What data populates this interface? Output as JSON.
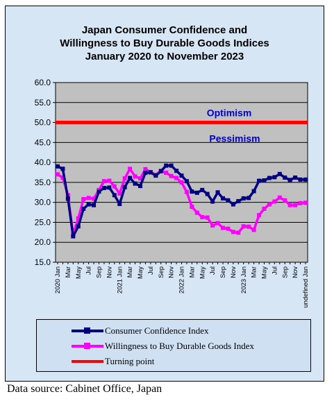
{
  "chart_data": {
    "type": "line",
    "title_lines": [
      "Japan Consumer Confidence and",
      "Willingness to Buy Durable Goods Indices",
      "January 2020 to November 2023"
    ],
    "ylim": [
      15,
      60
    ],
    "yticks": [
      "15.0",
      "20.0",
      "25.0",
      "30.0",
      "35.0",
      "40.0",
      "45.0",
      "50.0",
      "55.0",
      "60.0"
    ],
    "x_year_labels": [
      "2020",
      "2021",
      "2022",
      "2023"
    ],
    "x_month_labels": [
      "Jan",
      "Mar",
      "May",
      "Jul",
      "Sep",
      "Nov"
    ],
    "grid": true,
    "legend_position": "bottom",
    "annotations": [
      {
        "text": "Optimism",
        "y": 52.4
      },
      {
        "text": "Pessimism",
        "y": 46.0
      }
    ],
    "series": [
      {
        "name": "Consumer Confidence Index",
        "color": "#000080",
        "values": [
          39.0,
          38.4,
          30.9,
          21.5,
          24.0,
          28.4,
          29.5,
          29.3,
          32.7,
          33.6,
          33.7,
          31.8,
          29.6,
          33.8,
          36.1,
          34.7,
          34.1,
          37.4,
          37.5,
          36.7,
          37.8,
          39.2,
          39.2,
          37.9,
          36.7,
          35.3,
          32.7,
          32.4,
          33.1,
          32.1,
          30.2,
          32.5,
          31.0,
          30.5,
          29.5,
          30.3,
          31.0,
          31.1,
          32.8,
          35.4,
          35.5,
          36.1,
          36.3,
          37.1,
          36.2,
          35.6,
          36.2,
          35.7,
          35.7
        ]
      },
      {
        "name": "Willingness to Buy Durable Goods Index",
        "color": "#ff00ff",
        "values": [
          37.0,
          36.2,
          31.8,
          22.0,
          26.0,
          30.8,
          31.1,
          30.9,
          33.1,
          35.3,
          35.4,
          34.0,
          32.2,
          36.0,
          38.4,
          36.5,
          36.0,
          38.3,
          37.6,
          36.9,
          37.9,
          37.4,
          36.6,
          36.1,
          35.0,
          32.6,
          28.9,
          27.4,
          26.3,
          26.2,
          24.2,
          24.8,
          23.6,
          23.4,
          22.6,
          22.4,
          24.0,
          23.9,
          23.1,
          26.8,
          28.4,
          29.5,
          30.2,
          31.2,
          30.5,
          29.3,
          29.3,
          29.8,
          29.9
        ]
      },
      {
        "name": "Turning point",
        "color": "#ff0000",
        "constant": 50.0
      }
    ]
  },
  "source_text": "Data source: Cabinet Office, Japan"
}
